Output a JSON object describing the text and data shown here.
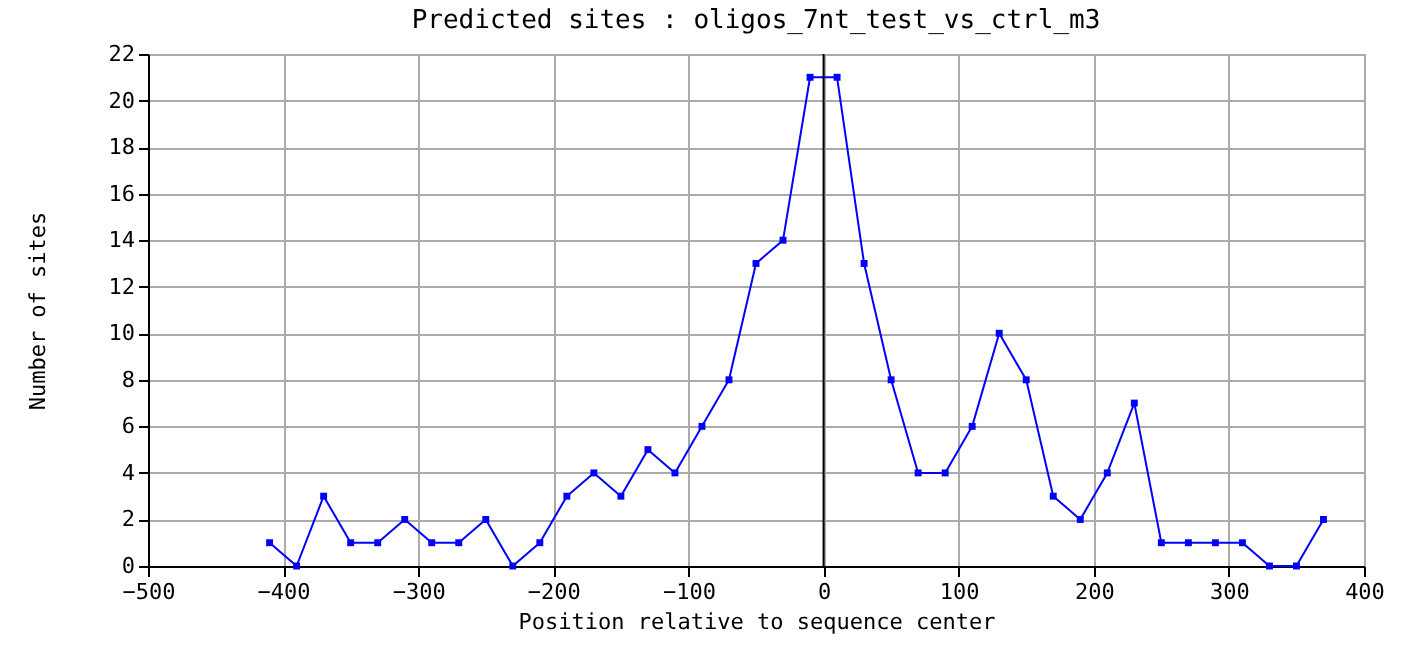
{
  "chart_data": {
    "type": "line",
    "title": "Predicted sites : oligos_7nt_test_vs_ctrl_m3",
    "xlabel": "Position relative to sequence center",
    "ylabel": "Number of sites",
    "x": [
      -410,
      -390,
      -370,
      -350,
      -330,
      -310,
      -290,
      -270,
      -250,
      -230,
      -210,
      -190,
      -170,
      -150,
      -130,
      -110,
      -90,
      -70,
      -50,
      -30,
      -10,
      10,
      30,
      50,
      70,
      90,
      110,
      130,
      150,
      170,
      190,
      210,
      230,
      250,
      270,
      290,
      310,
      330,
      350,
      370
    ],
    "series": [
      {
        "color": "#0000ff",
        "values": [
          1,
          0,
          3,
          1,
          1,
          2,
          1,
          1,
          2,
          0,
          1,
          3,
          4,
          3,
          5,
          4,
          6,
          8,
          13,
          14,
          21,
          21,
          13,
          8,
          4,
          4,
          6,
          10,
          8,
          3,
          2,
          4,
          7,
          1,
          1,
          1,
          1,
          0,
          0,
          2
        ]
      }
    ],
    "xlim": [
      -500,
      400
    ],
    "xticks": [
      -500,
      -400,
      -300,
      -200,
      -100,
      0,
      100,
      200,
      300,
      400
    ],
    "ylim": [
      0,
      22
    ],
    "yticks": [
      0,
      2,
      4,
      6,
      8,
      10,
      12,
      14,
      16,
      18,
      20,
      22
    ],
    "grid": true,
    "marker": "square",
    "line_style": "solid",
    "ref_lines": [
      {
        "axis": "x",
        "value": 0,
        "color": "#000000"
      }
    ]
  }
}
